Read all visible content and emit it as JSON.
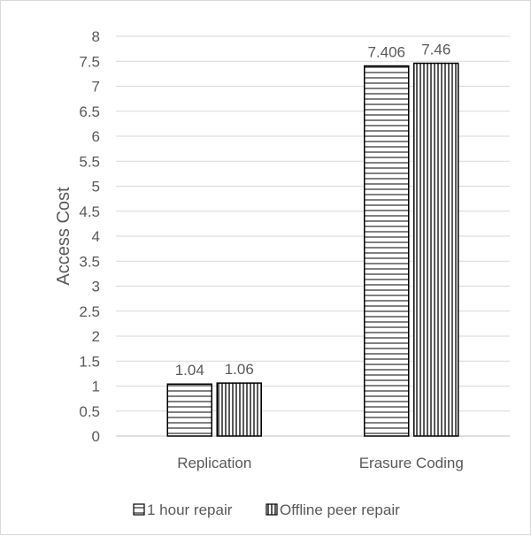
{
  "chart_data": {
    "type": "bar",
    "categories": [
      "Replication",
      "Erasure Coding"
    ],
    "series": [
      {
        "name": "1 hour repair",
        "values": [
          1.04,
          7.406
        ],
        "labels": [
          "1.04",
          "7.406"
        ],
        "pattern": "horizontal-stripes"
      },
      {
        "name": "Offline peer repair",
        "values": [
          1.06,
          7.46
        ],
        "labels": [
          "1.06",
          "7.46"
        ],
        "pattern": "vertical-stripes"
      }
    ],
    "title": "",
    "xlabel": "",
    "ylabel": "Access Cost",
    "ylim": [
      0,
      8
    ],
    "yticks": [
      "0",
      "0.5",
      "1",
      "1.5",
      "2",
      "2.5",
      "3",
      "3.5",
      "4",
      "4.5",
      "5",
      "5.5",
      "6",
      "6.5",
      "7",
      "7.5",
      "8"
    ],
    "grid": true,
    "legend_position": "bottom",
    "colors": {
      "grid": "#d9d9d9",
      "axis": "#bfbfbf",
      "bar_stroke": "#000000",
      "text": "#595959",
      "background": "#ffffff"
    }
  }
}
